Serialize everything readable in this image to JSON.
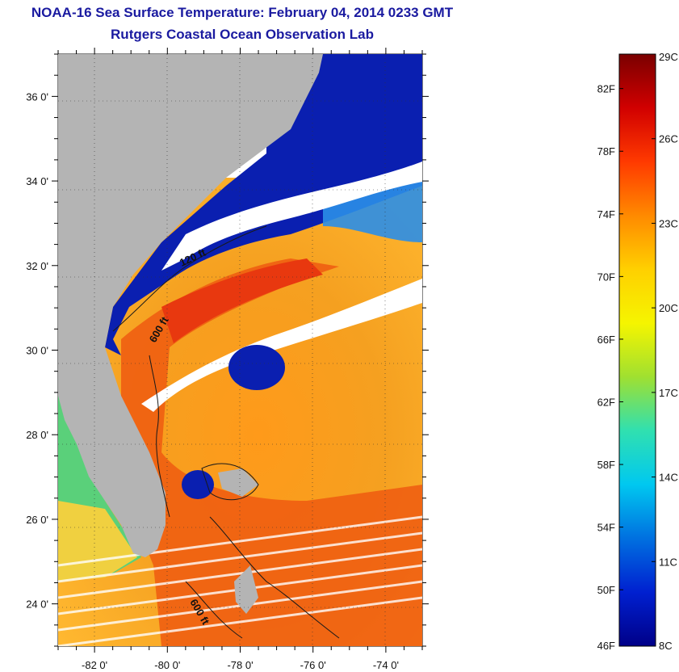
{
  "header": {
    "title": "NOAA-16 Sea Surface Temperature:  February 04, 2014 0233 GMT",
    "subtitle": "Rutgers Coastal Ocean Observation Lab"
  },
  "map": {
    "lat_labels": [
      "36 0'",
      "34 0'",
      "32 0'",
      "30 0'",
      "28 0'",
      "26 0'",
      "24 0'"
    ],
    "lon_labels": [
      "-82 0'",
      "-80 0'",
      "-78 0'",
      "-76 0'",
      "-74 0'"
    ],
    "lat_values": [
      36,
      34,
      32,
      30,
      28,
      26,
      24
    ],
    "lon_values": [
      -82,
      -80,
      -78,
      -76,
      -74
    ],
    "extent": {
      "lon_min": -83,
      "lon_max": -73,
      "lat_min": 23,
      "lat_max": 37
    },
    "contours": [
      {
        "label": "120 ft"
      },
      {
        "label": "600 ft"
      },
      {
        "label": "600 ft"
      }
    ],
    "colors": {
      "land": "#b4b4b4",
      "cloud": "#ffffff",
      "cold_water": "#0a1fb0",
      "warm_water": "#f07820",
      "hot_water": "#e8400f",
      "bath_line": "#1a1a1a"
    }
  },
  "colorbar": {
    "fahrenheit_labels": [
      "82F",
      "78F",
      "74F",
      "70F",
      "66F",
      "62F",
      "58F",
      "54F",
      "50F",
      "46F"
    ],
    "celsius_labels": [
      "29C",
      "26C",
      "23C",
      "20C",
      "17C",
      "14C",
      "11C",
      "8C"
    ],
    "stops": [
      "#7a0000",
      "#d10000",
      "#ff3a00",
      "#ff8a00",
      "#ffd000",
      "#f5f500",
      "#a0e030",
      "#30e0b0",
      "#00c8f0",
      "#0070e0",
      "#0020d0",
      "#000088"
    ]
  }
}
